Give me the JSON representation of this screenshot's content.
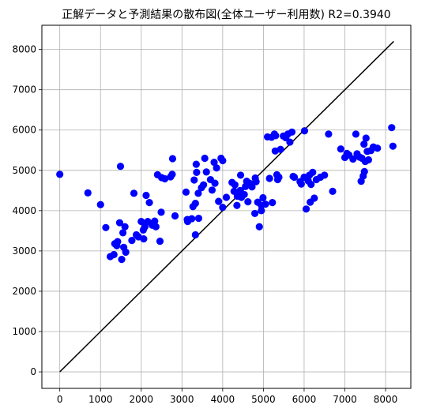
{
  "chart_data": {
    "type": "scatter",
    "title": "正解データと予測結果の散布図(全体ユーザー利用数)  R2=0.3940",
    "xlabel": "",
    "ylabel": "",
    "xlim": [
      -440,
      8620
    ],
    "ylim": [
      -410,
      8600
    ],
    "xticks": [
      0,
      1000,
      2000,
      3000,
      4000,
      5000,
      6000,
      7000,
      8000
    ],
    "yticks": [
      0,
      1000,
      2000,
      3000,
      4000,
      5000,
      6000,
      7000,
      8000
    ],
    "grid": true,
    "colors": {
      "points": "#0000ff",
      "reference_line": "#000000",
      "grid": "#b0b0b0"
    },
    "reference_line": {
      "x": [
        0,
        8200
      ],
      "y": [
        0,
        8200
      ]
    },
    "points": [
      [
        0,
        4900
      ],
      [
        690,
        4440
      ],
      [
        1000,
        4150
      ],
      [
        1130,
        3580
      ],
      [
        1240,
        2860
      ],
      [
        1330,
        2910
      ],
      [
        1350,
        3180
      ],
      [
        1400,
        3130
      ],
      [
        1420,
        3230
      ],
      [
        1470,
        3700
      ],
      [
        1490,
        5100
      ],
      [
        1520,
        2790
      ],
      [
        1550,
        3450
      ],
      [
        1570,
        3090
      ],
      [
        1600,
        3600
      ],
      [
        1620,
        2970
      ],
      [
        1770,
        3260
      ],
      [
        1820,
        4430
      ],
      [
        1880,
        3400
      ],
      [
        1930,
        3350
      ],
      [
        2000,
        3730
      ],
      [
        2050,
        3520
      ],
      [
        2060,
        3300
      ],
      [
        2090,
        3600
      ],
      [
        2120,
        4380
      ],
      [
        2160,
        3730
      ],
      [
        2200,
        4200
      ],
      [
        2270,
        3640
      ],
      [
        2330,
        3740
      ],
      [
        2360,
        3600
      ],
      [
        2400,
        4890
      ],
      [
        2460,
        3240
      ],
      [
        2490,
        3960
      ],
      [
        2500,
        4820
      ],
      [
        2580,
        4790
      ],
      [
        2720,
        4840
      ],
      [
        2760,
        4900
      ],
      [
        2770,
        5290
      ],
      [
        2830,
        3870
      ],
      [
        3100,
        4460
      ],
      [
        3130,
        3780
      ],
      [
        3140,
        3730
      ],
      [
        3240,
        3800
      ],
      [
        3270,
        4100
      ],
      [
        3300,
        4760
      ],
      [
        3330,
        4180
      ],
      [
        3330,
        3400
      ],
      [
        3350,
        5150
      ],
      [
        3360,
        4950
      ],
      [
        3400,
        4430
      ],
      [
        3410,
        3810
      ],
      [
        3480,
        4570
      ],
      [
        3530,
        4640
      ],
      [
        3560,
        5300
      ],
      [
        3600,
        4960
      ],
      [
        3700,
        4770
      ],
      [
        3740,
        4510
      ],
      [
        3790,
        5200
      ],
      [
        3810,
        4680
      ],
      [
        3850,
        5060
      ],
      [
        3900,
        4230
      ],
      [
        3960,
        5300
      ],
      [
        4000,
        5240
      ],
      [
        4000,
        4080
      ],
      [
        4090,
        4330
      ],
      [
        4230,
        4700
      ],
      [
        4280,
        4480
      ],
      [
        4300,
        4640
      ],
      [
        4350,
        4130
      ],
      [
        4360,
        4360
      ],
      [
        4370,
        4360
      ],
      [
        4430,
        4500
      ],
      [
        4440,
        4880
      ],
      [
        4460,
        4330
      ],
      [
        4530,
        4400
      ],
      [
        4560,
        4600
      ],
      [
        4590,
        4730
      ],
      [
        4620,
        4220
      ],
      [
        4660,
        4680
      ],
      [
        4720,
        4590
      ],
      [
        4790,
        3930
      ],
      [
        4800,
        4810
      ],
      [
        4820,
        4720
      ],
      [
        4860,
        4210
      ],
      [
        4900,
        3600
      ],
      [
        4950,
        4000
      ],
      [
        4950,
        4130
      ],
      [
        4990,
        4320
      ],
      [
        5050,
        4160
      ],
      [
        5100,
        5830
      ],
      [
        5150,
        4800
      ],
      [
        5200,
        5820
      ],
      [
        5220,
        4200
      ],
      [
        5270,
        5900
      ],
      [
        5290,
        5480
      ],
      [
        5300,
        5860
      ],
      [
        5330,
        4890
      ],
      [
        5350,
        4770
      ],
      [
        5380,
        4830
      ],
      [
        5420,
        5520
      ],
      [
        5490,
        5850
      ],
      [
        5550,
        5810
      ],
      [
        5600,
        5900
      ],
      [
        5650,
        5700
      ],
      [
        5700,
        5950
      ],
      [
        5730,
        4850
      ],
      [
        5760,
        4830
      ],
      [
        5900,
        4720
      ],
      [
        5930,
        4660
      ],
      [
        6000,
        4830
      ],
      [
        6010,
        5980
      ],
      [
        6050,
        4040
      ],
      [
        6100,
        4740
      ],
      [
        6130,
        4880
      ],
      [
        6150,
        4210
      ],
      [
        6170,
        4650
      ],
      [
        6210,
        4950
      ],
      [
        6250,
        4310
      ],
      [
        6300,
        4770
      ],
      [
        6400,
        4830
      ],
      [
        6500,
        4880
      ],
      [
        6600,
        5900
      ],
      [
        6700,
        4480
      ],
      [
        6900,
        5530
      ],
      [
        7000,
        5320
      ],
      [
        7050,
        5420
      ],
      [
        7100,
        5380
      ],
      [
        7200,
        5280
      ],
      [
        7270,
        5900
      ],
      [
        7300,
        5410
      ],
      [
        7360,
        5330
      ],
      [
        7400,
        4730
      ],
      [
        7420,
        5300
      ],
      [
        7450,
        4860
      ],
      [
        7470,
        5650
      ],
      [
        7480,
        4970
      ],
      [
        7500,
        5220
      ],
      [
        7520,
        5800
      ],
      [
        7550,
        5470
      ],
      [
        7580,
        5260
      ],
      [
        7640,
        5490
      ],
      [
        7700,
        5580
      ],
      [
        7800,
        5550
      ],
      [
        8150,
        6060
      ],
      [
        8180,
        5600
      ]
    ]
  }
}
